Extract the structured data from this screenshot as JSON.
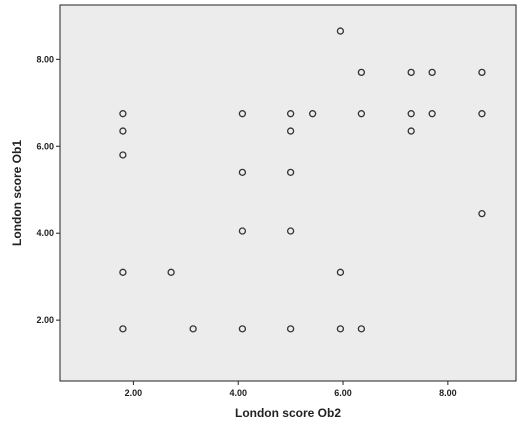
{
  "chart_data": {
    "type": "scatter",
    "title": "",
    "xlabel": "London score Ob2",
    "ylabel": "London score Ob1",
    "xlim": [
      0.6,
      9.3
    ],
    "ylim": [
      0.6,
      9.25
    ],
    "xticks": [
      2,
      4,
      6,
      8
    ],
    "yticks": [
      2,
      4,
      6,
      8
    ],
    "xtick_labels": [
      "2.00",
      "4.00",
      "6.00",
      "8.00"
    ],
    "ytick_labels": [
      "2.00",
      "4.00",
      "6.00",
      "8.00"
    ],
    "grid": false,
    "background": "#ececec",
    "points": [
      {
        "x": 1.8,
        "y": 6.75
      },
      {
        "x": 1.8,
        "y": 6.35
      },
      {
        "x": 1.8,
        "y": 5.8
      },
      {
        "x": 1.8,
        "y": 3.1
      },
      {
        "x": 1.8,
        "y": 1.8
      },
      {
        "x": 2.72,
        "y": 3.1
      },
      {
        "x": 3.14,
        "y": 1.8
      },
      {
        "x": 4.08,
        "y": 6.75
      },
      {
        "x": 4.08,
        "y": 5.4
      },
      {
        "x": 4.08,
        "y": 4.05
      },
      {
        "x": 4.08,
        "y": 1.8
      },
      {
        "x": 5.0,
        "y": 6.75
      },
      {
        "x": 5.0,
        "y": 6.35
      },
      {
        "x": 5.0,
        "y": 5.4
      },
      {
        "x": 5.0,
        "y": 4.05
      },
      {
        "x": 5.0,
        "y": 1.8
      },
      {
        "x": 5.42,
        "y": 6.75
      },
      {
        "x": 5.95,
        "y": 8.65
      },
      {
        "x": 5.95,
        "y": 3.1
      },
      {
        "x": 5.95,
        "y": 1.8
      },
      {
        "x": 6.35,
        "y": 7.7
      },
      {
        "x": 6.35,
        "y": 6.75
      },
      {
        "x": 6.35,
        "y": 1.8
      },
      {
        "x": 7.3,
        "y": 7.7
      },
      {
        "x": 7.3,
        "y": 6.75
      },
      {
        "x": 7.3,
        "y": 6.35
      },
      {
        "x": 7.7,
        "y": 7.7
      },
      {
        "x": 7.7,
        "y": 6.75
      },
      {
        "x": 8.65,
        "y": 7.7
      },
      {
        "x": 8.65,
        "y": 6.75
      },
      {
        "x": 8.65,
        "y": 4.45
      }
    ]
  }
}
